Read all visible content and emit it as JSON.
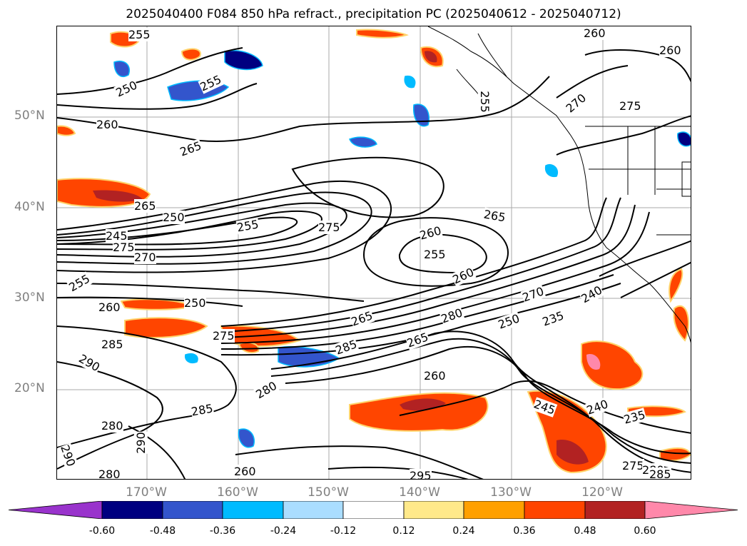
{
  "title": "2025040400 F084 850 hPa refract., precipitation PC (2025040612 - 2025040712)",
  "lat_labels": [
    "50°N",
    "40°N",
    "30°N",
    "20°N"
  ],
  "lon_labels": [
    "170°W",
    "160°W",
    "150°W",
    "140°W",
    "130°W",
    "120°W"
  ],
  "contour_labels": [
    "255",
    "250",
    "255",
    "260",
    "265",
    "260",
    "260",
    "270",
    "275",
    "265",
    "250",
    "255",
    "275",
    "260",
    "255",
    "265",
    "245",
    "275",
    "270",
    "255",
    "260",
    "250",
    "275",
    "250",
    "260",
    "265",
    "285",
    "280",
    "270",
    "235",
    "240",
    "285",
    "290",
    "265",
    "260",
    "280",
    "285",
    "280",
    "290",
    "240",
    "235",
    "290",
    "245",
    "275",
    "280",
    "285",
    "280",
    "295",
    "260",
    "255"
  ],
  "colorbar": {
    "tick_labels": [
      "-0.60",
      "-0.48",
      "-0.36",
      "-0.24",
      "-0.12",
      "0.12",
      "0.24",
      "0.36",
      "0.48",
      "0.60"
    ],
    "colors": [
      "#9933cc",
      "#000080",
      "#3355cc",
      "#00bbff",
      "#aaddff",
      "#ffffff",
      "#ffe98a",
      "#ffa000",
      "#ff4500",
      "#b22222",
      "#ff88aa",
      "#ff88aa"
    ]
  },
  "colors": {
    "contour": "#000000",
    "grid": "#a0a0a0",
    "coast": "#000000"
  }
}
